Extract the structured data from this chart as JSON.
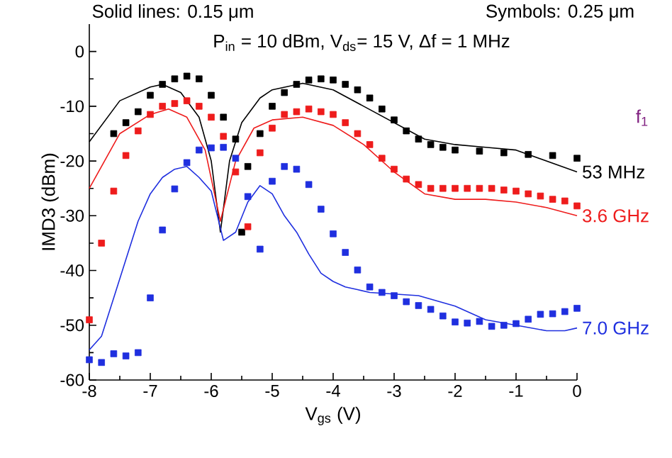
{
  "chart_data": {
    "type": "line",
    "xlabel": "V$_{gs}$ (V)",
    "ylabel": "IMD3 (dBm)",
    "annotations": [
      "Solid lines: 0.15 μm",
      "Symbols: 0.25 μm",
      "P$_{in}$ = 10 dBm, V$_{ds}$= 15 V, Δf = 1 MHz",
      "f$_{1}$"
    ],
    "xlim": [
      -8,
      0
    ],
    "ylim": [
      -60,
      5
    ],
    "xticks": [
      -8,
      -7,
      -6,
      -5,
      -4,
      -3,
      -2,
      -1,
      0
    ],
    "yticks": [
      -60,
      -50,
      -40,
      -30,
      -20,
      -10,
      0
    ],
    "series": [
      {
        "type": "line",
        "name": "53 MHz",
        "color": "#000000",
        "x": [
          -8,
          -7.5,
          -7,
          -6.8,
          -6.5,
          -6.2,
          -6,
          -5.85,
          -5.7,
          -5.5,
          -5.2,
          -5,
          -4.5,
          -4,
          -3.5,
          -3,
          -2.5,
          -2,
          -1.5,
          -1,
          -0.5,
          0
        ],
        "values": [
          -16.5,
          -9,
          -6.5,
          -6,
          -7.5,
          -12,
          -20,
          -33,
          -20,
          -13,
          -8.5,
          -7,
          -5.8,
          -7,
          -10,
          -13,
          -16,
          -17,
          -17.5,
          -18,
          -20,
          -22
        ]
      },
      {
        "type": "line",
        "name": "3.6 GHz",
        "color": "#ee1c1c",
        "x": [
          -8,
          -7.5,
          -7,
          -6.7,
          -6.4,
          -6.1,
          -5.85,
          -5.6,
          -5.3,
          -5,
          -4.5,
          -4,
          -3.5,
          -3,
          -2.5,
          -2,
          -1.5,
          -1,
          -0.5,
          0
        ],
        "values": [
          -25,
          -15,
          -11.5,
          -10.5,
          -12,
          -18,
          -31,
          -20,
          -14,
          -12.5,
          -12,
          -13.5,
          -17,
          -22,
          -26,
          -27,
          -27,
          -27.5,
          -28.5,
          -30
        ]
      },
      {
        "type": "line",
        "name": "7.0 GHz",
        "color": "#1f2fdf",
        "x": [
          -8,
          -7.8,
          -7.6,
          -7.4,
          -7.2,
          -7,
          -6.8,
          -6.6,
          -6.4,
          -6.2,
          -6,
          -5.8,
          -5.6,
          -5.4,
          -5.2,
          -5,
          -4.8,
          -4.6,
          -4.4,
          -4.2,
          -4,
          -3.8,
          -3.6,
          -3.4,
          -3,
          -2.6,
          -2,
          -1.5,
          -1,
          -0.5,
          -0.2,
          0
        ],
        "values": [
          -54.5,
          -52,
          -45,
          -38,
          -31,
          -26,
          -23,
          -21.5,
          -21,
          -23,
          -25.5,
          -34.5,
          -33,
          -27.5,
          -24.5,
          -26,
          -30,
          -33,
          -37,
          -40.5,
          -42,
          -43,
          -43.5,
          -44,
          -44.3,
          -44.6,
          -46.5,
          -49,
          -50,
          -51,
          -51,
          -50.5
        ]
      },
      {
        "type": "scatter",
        "marker": "square",
        "color": "#000000",
        "x": [
          -7.6,
          -7.4,
          -7.2,
          -7,
          -6.8,
          -6.6,
          -6.4,
          -6.2,
          -6,
          -5.8,
          -5.6,
          -5.5,
          -5.4,
          -5.2,
          -5,
          -4.8,
          -4.6,
          -4.4,
          -4.2,
          -4,
          -3.8,
          -3.6,
          -3.4,
          -3.2,
          -3,
          -2.8,
          -2.6,
          -2.4,
          -2.2,
          -2,
          -1.6,
          -1.2,
          -0.8,
          -0.4,
          0
        ],
        "values": [
          -15,
          -13,
          -11,
          -8,
          -6,
          -5,
          -4.5,
          -5,
          -8,
          -12,
          -16,
          -33,
          -21,
          -15,
          -10,
          -7.5,
          -6,
          -5.2,
          -5,
          -5.2,
          -6,
          -7,
          -8.5,
          -10.5,
          -12.5,
          -14.5,
          -16,
          -17,
          -17.5,
          -18,
          -18.2,
          -18.5,
          -18.8,
          -19,
          -19.5
        ]
      },
      {
        "type": "scatter",
        "marker": "square",
        "color": "#ee1c1c",
        "x": [
          -8,
          -7.8,
          -7.6,
          -7.4,
          -7.2,
          -7,
          -6.8,
          -6.6,
          -6.4,
          -6.2,
          -6,
          -5.8,
          -5.6,
          -5.4,
          -5.2,
          -5,
          -4.8,
          -4.6,
          -4.4,
          -4.2,
          -4,
          -3.8,
          -3.6,
          -3.4,
          -3.2,
          -3,
          -2.8,
          -2.6,
          -2.4,
          -2.2,
          -2,
          -1.8,
          -1.6,
          -1.4,
          -1.2,
          -1,
          -0.8,
          -0.6,
          -0.4,
          -0.2,
          0
        ],
        "values": [
          -49,
          -35,
          -25.5,
          -19,
          -14.5,
          -11.5,
          -10,
          -9.5,
          -9,
          -10,
          -12,
          -15.5,
          -22,
          -32,
          -18.5,
          -14,
          -11.5,
          -11,
          -10.5,
          -11,
          -11.5,
          -13,
          -15,
          -17,
          -19.5,
          -21.5,
          -23.3,
          -24.3,
          -25,
          -25,
          -25,
          -25,
          -25,
          -25,
          -25.3,
          -25.5,
          -26,
          -26.4,
          -27,
          -27.3,
          -28.2
        ]
      },
      {
        "type": "scatter",
        "marker": "square",
        "color": "#1f2fdf",
        "x": [
          -8,
          -7.8,
          -7.6,
          -7.4,
          -7.2,
          -7,
          -6.8,
          -6.6,
          -6.4,
          -6.2,
          -6,
          -5.8,
          -5.6,
          -5.4,
          -5.2,
          -5,
          -4.8,
          -4.6,
          -4.4,
          -4.2,
          -4,
          -3.8,
          -3.6,
          -3.4,
          -3.2,
          -3,
          -2.8,
          -2.6,
          -2.4,
          -2.2,
          -2,
          -1.8,
          -1.6,
          -1.4,
          -1.2,
          -1,
          -0.8,
          -0.6,
          -0.4,
          -0.2,
          0
        ],
        "values": [
          -56.3,
          -56.8,
          -55.2,
          -55.6,
          -55,
          -45,
          -32.6,
          -25.1,
          -20.3,
          -18,
          -17.6,
          -17.5,
          -19.5,
          -26.5,
          -36.1,
          -23.7,
          -21,
          -21.5,
          -24.3,
          -28.8,
          -33.3,
          -36.7,
          -39.9,
          -43,
          -44,
          -44.6,
          -45.7,
          -46.4,
          -47.1,
          -48.3,
          -49.4,
          -49.6,
          -49.3,
          -50.2,
          -50,
          -49.7,
          -48.9,
          -48,
          -47.9,
          -47.5,
          -46.9
        ]
      }
    ]
  }
}
